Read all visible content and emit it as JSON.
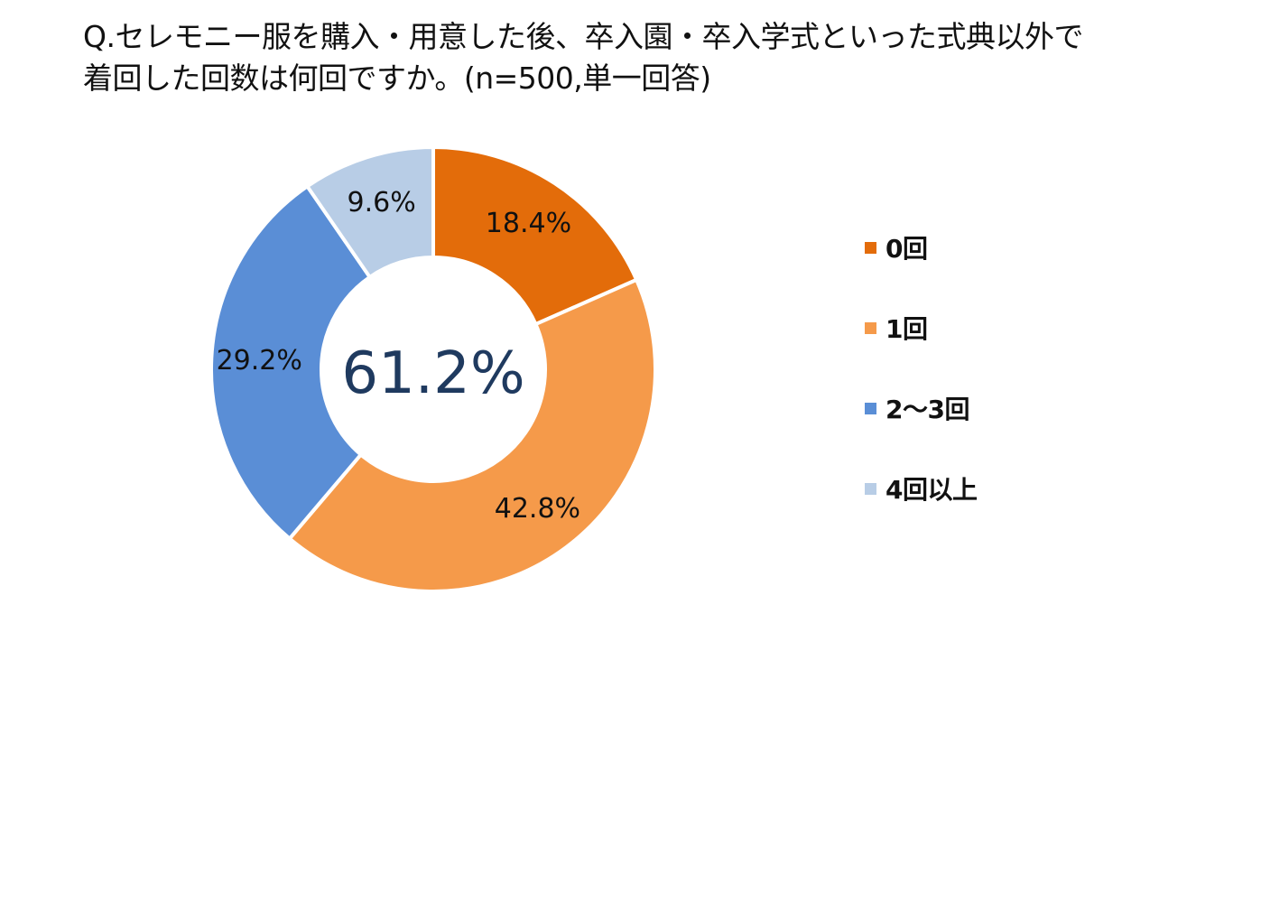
{
  "chart_data": {
    "type": "pie",
    "title_lines": [
      "Q.セレモニー服を購入・用意した後、卒入園・卒入学式といった式典以外で",
      "着回した回数は何回ですか。(n=500,単一回答)"
    ],
    "categories": [
      "0回",
      "1回",
      "2〜3回",
      "4回以上"
    ],
    "values": [
      18.4,
      42.8,
      29.2,
      9.6
    ],
    "value_labels": [
      "18.4%",
      "42.8%",
      "29.2%",
      "9.6%"
    ],
    "colors": [
      "#E36C0A",
      "#F59A4A",
      "#5A8ED6",
      "#B8CDE6"
    ],
    "center_label": "61.2%",
    "center_label_color": "#1F3A5F",
    "legend_position": "right"
  }
}
